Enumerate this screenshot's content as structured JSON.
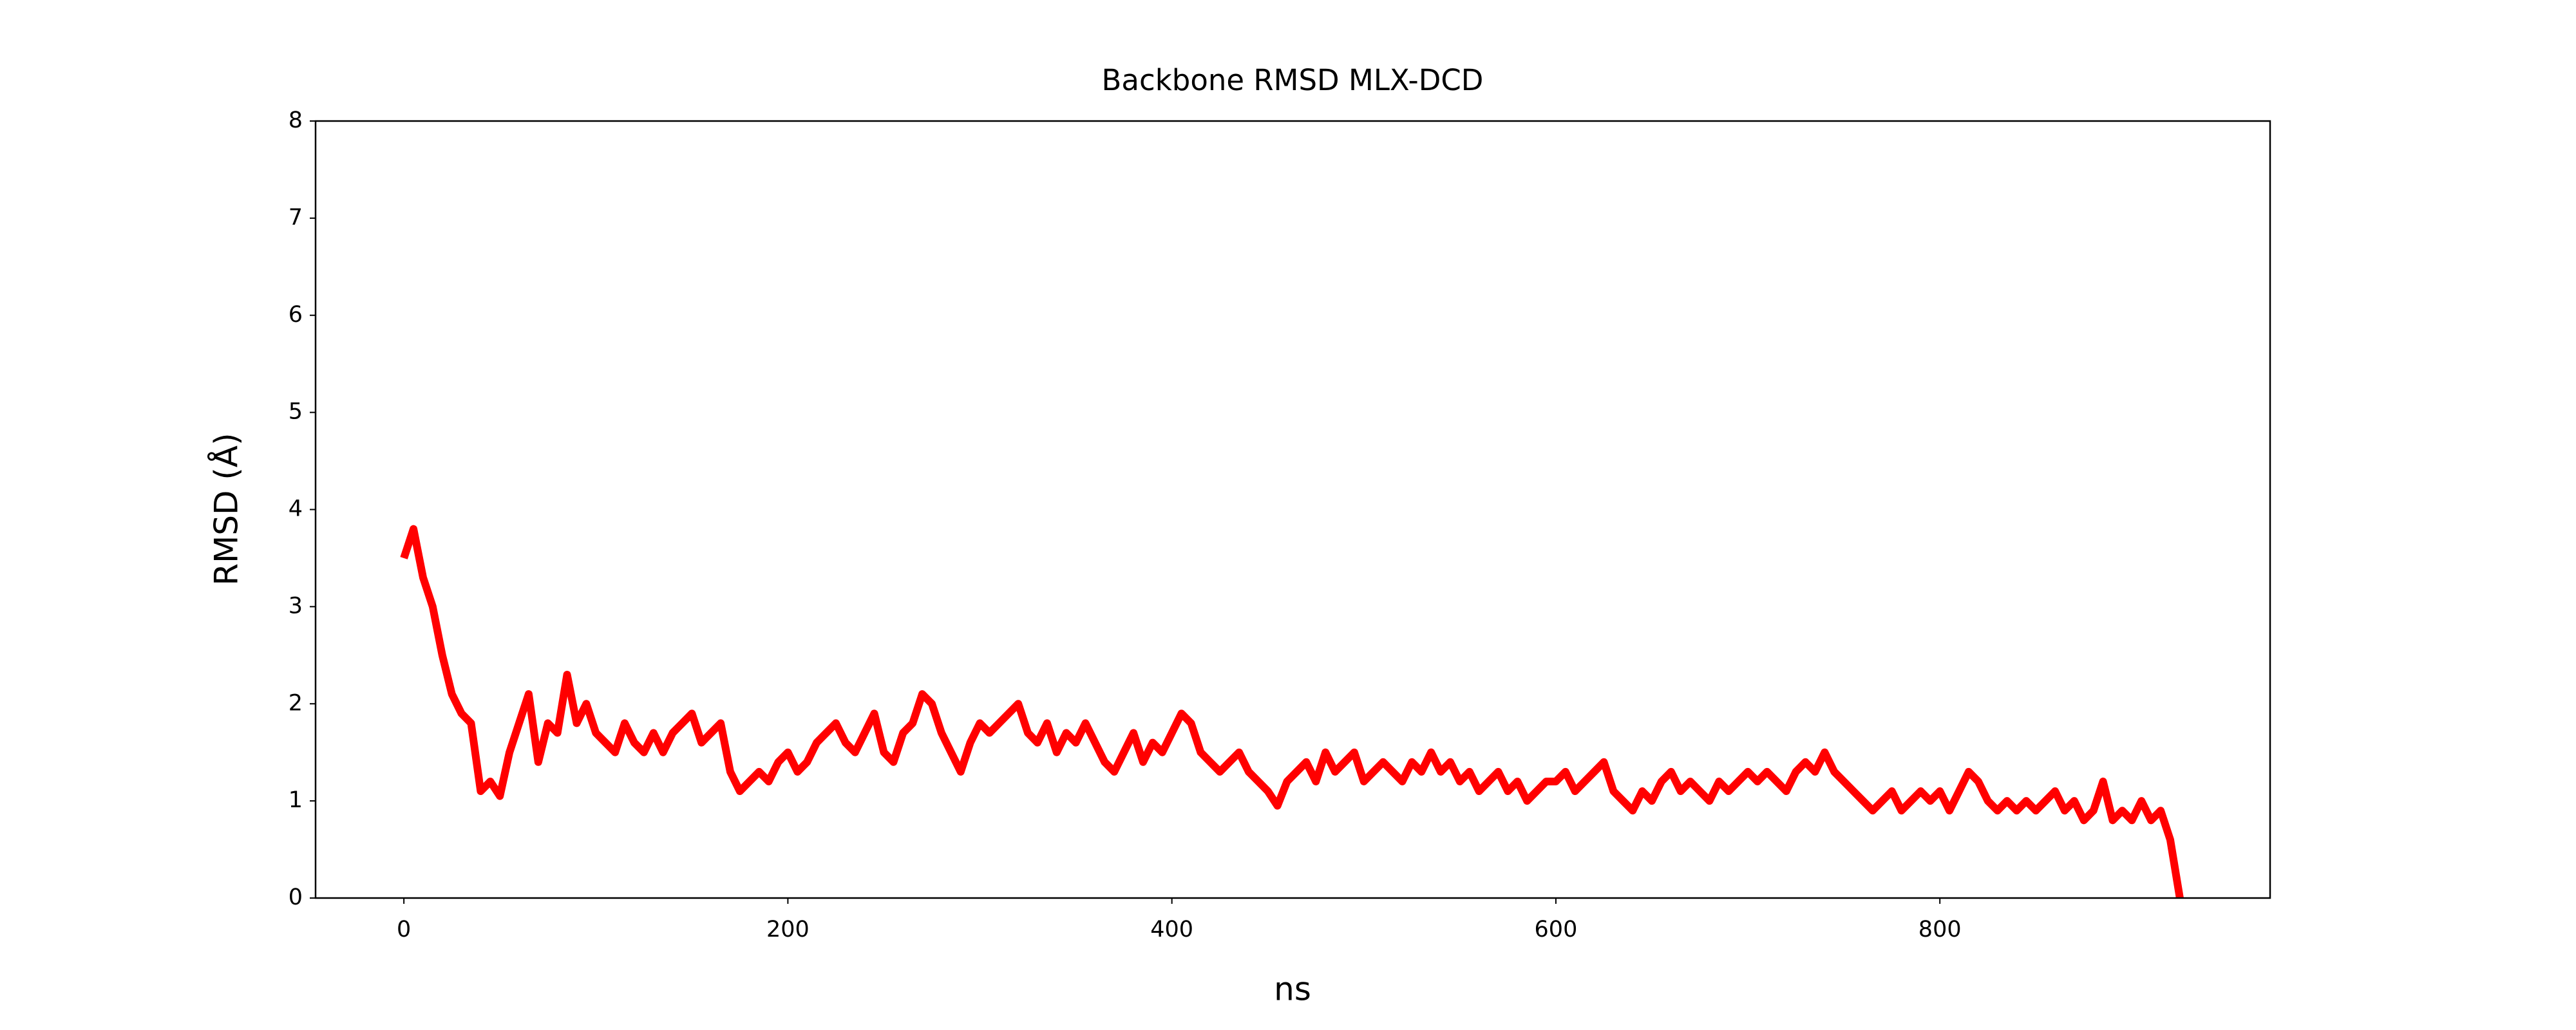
{
  "chart_data": {
    "type": "line",
    "title": "Backbone RMSD MLX-DCD",
    "x_label": "ns",
    "y_label": "RMSD (Å)",
    "x": [
      0,
      5,
      10,
      15,
      20,
      25,
      30,
      35,
      40,
      45,
      50,
      55,
      60,
      65,
      70,
      75,
      80,
      85,
      90,
      95,
      100,
      105,
      110,
      115,
      120,
      125,
      130,
      135,
      140,
      145,
      150,
      155,
      160,
      165,
      170,
      175,
      180,
      185,
      190,
      195,
      200,
      205,
      210,
      215,
      220,
      225,
      230,
      235,
      240,
      245,
      250,
      255,
      260,
      265,
      270,
      275,
      280,
      285,
      290,
      295,
      300,
      305,
      310,
      315,
      320,
      325,
      330,
      335,
      340,
      345,
      350,
      355,
      360,
      365,
      370,
      375,
      380,
      385,
      390,
      395,
      400,
      405,
      410,
      415,
      420,
      425,
      430,
      435,
      440,
      445,
      450,
      455,
      460,
      465,
      470,
      475,
      480,
      485,
      490,
      495,
      500,
      505,
      510,
      515,
      520,
      525,
      530,
      535,
      540,
      545,
      550,
      555,
      560,
      565,
      570,
      575,
      580,
      585,
      590,
      595,
      600,
      605,
      610,
      615,
      620,
      625,
      630,
      635,
      640,
      645,
      650,
      655,
      660,
      665,
      670,
      675,
      680,
      685,
      690,
      695,
      700,
      705,
      710,
      715,
      720,
      725,
      730,
      735,
      740,
      745,
      750,
      755,
      760,
      765,
      770,
      775,
      780,
      785,
      790,
      795,
      800,
      805,
      810,
      815,
      820,
      825,
      830,
      835,
      840,
      845,
      850,
      855,
      860,
      865,
      870,
      875,
      880,
      885,
      890,
      895,
      900,
      905,
      910,
      915,
      920,
      925
    ],
    "series": [
      {
        "name": "RMSD",
        "color": "#ff0000",
        "values": [
          3.5,
          3.8,
          3.3,
          3.0,
          2.5,
          2.1,
          1.9,
          1.8,
          1.1,
          1.2,
          1.05,
          1.5,
          1.8,
          2.1,
          1.4,
          1.8,
          1.7,
          2.3,
          1.8,
          2.0,
          1.7,
          1.6,
          1.5,
          1.8,
          1.6,
          1.5,
          1.7,
          1.5,
          1.7,
          1.8,
          1.9,
          1.6,
          1.7,
          1.8,
          1.3,
          1.1,
          1.2,
          1.3,
          1.2,
          1.4,
          1.5,
          1.3,
          1.4,
          1.6,
          1.7,
          1.8,
          1.6,
          1.5,
          1.7,
          1.9,
          1.5,
          1.4,
          1.7,
          1.8,
          2.1,
          2.0,
          1.7,
          1.5,
          1.3,
          1.6,
          1.8,
          1.7,
          1.8,
          1.9,
          2.0,
          1.7,
          1.6,
          1.8,
          1.5,
          1.7,
          1.6,
          1.8,
          1.6,
          1.4,
          1.3,
          1.5,
          1.7,
          1.4,
          1.6,
          1.5,
          1.7,
          1.9,
          1.8,
          1.5,
          1.4,
          1.3,
          1.4,
          1.5,
          1.3,
          1.2,
          1.1,
          0.95,
          1.2,
          1.3,
          1.4,
          1.2,
          1.5,
          1.3,
          1.4,
          1.5,
          1.2,
          1.3,
          1.4,
          1.3,
          1.2,
          1.4,
          1.3,
          1.5,
          1.3,
          1.4,
          1.2,
          1.3,
          1.1,
          1.2,
          1.3,
          1.1,
          1.2,
          1.0,
          1.1,
          1.2,
          1.2,
          1.3,
          1.1,
          1.2,
          1.3,
          1.4,
          1.1,
          1.0,
          0.9,
          1.1,
          1.0,
          1.2,
          1.3,
          1.1,
          1.2,
          1.1,
          1.0,
          1.2,
          1.1,
          1.2,
          1.3,
          1.2,
          1.3,
          1.2,
          1.1,
          1.3,
          1.4,
          1.3,
          1.5,
          1.3,
          1.2,
          1.1,
          1.0,
          0.9,
          1.0,
          1.1,
          0.9,
          1.0,
          1.1,
          1.0,
          1.1,
          0.9,
          1.1,
          1.3,
          1.2,
          1.0,
          0.9,
          1.0,
          0.9,
          1.0,
          0.9,
          1.0,
          1.1,
          0.9,
          1.0,
          0.8,
          0.9,
          1.2,
          0.8,
          0.9,
          0.8,
          1.0,
          0.8,
          0.9,
          0.6,
          0
        ]
      }
    ],
    "xlim": [
      -46,
      972
    ],
    "ylim": [
      0,
      8
    ],
    "xticks": [
      0,
      200,
      400,
      600,
      800
    ],
    "yticks": [
      0,
      1,
      2,
      3,
      4,
      5,
      6,
      7,
      8
    ],
    "grid": false
  }
}
